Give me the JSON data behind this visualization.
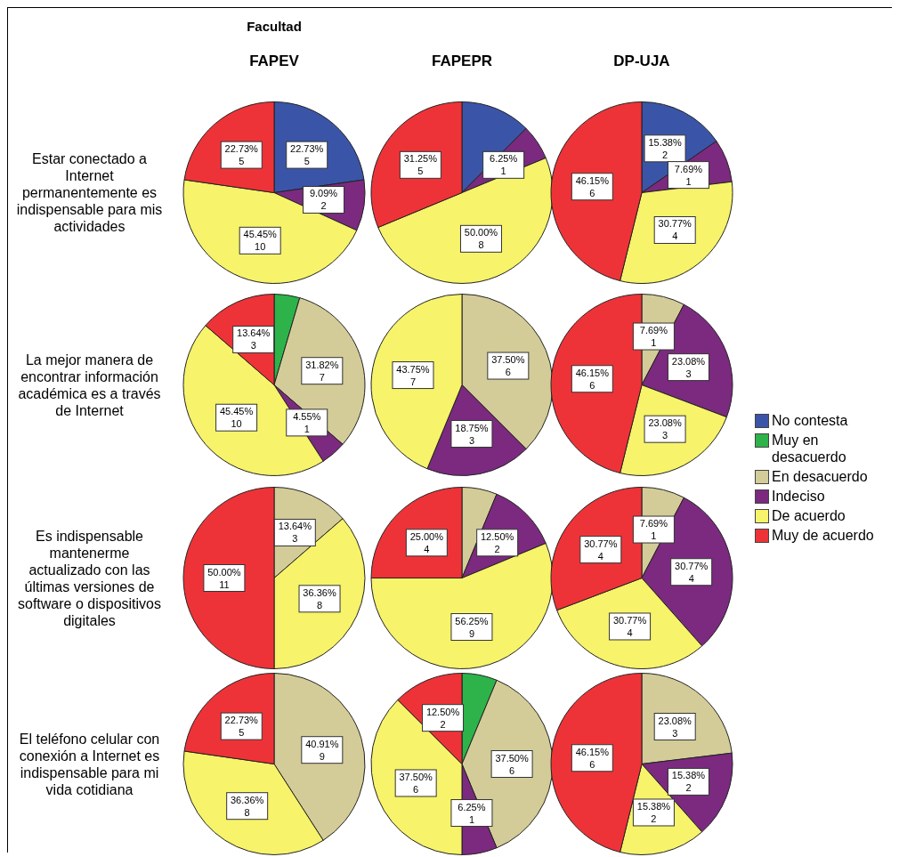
{
  "chart_data": [
    {
      "type": "pie",
      "annotations": [
        "Facultad"
      ],
      "title": "FAPEV",
      "ylabel": "Estar conectado a Internet permanentemente es indispensable para mis actividades",
      "categories": [
        null,
        null,
        null,
        null,
        null,
        null
      ],
      "values": [
        5,
        null,
        null,
        2,
        10,
        5
      ],
      "value_labels": [
        "22.73%\n5",
        null,
        null,
        "9.09%\n2",
        "45.45%\n10",
        "22.73%\n5"
      ],
      "colors": [
        "#3a55a8",
        null,
        null,
        "#7b2a7f",
        "#f7f36a",
        "#ee3338"
      ]
    },
    {
      "type": "pie",
      "title": "FAPEPR",
      "categories": [
        null,
        null,
        null,
        null,
        null,
        null
      ],
      "values": [
        2,
        null,
        null,
        1,
        8,
        5
      ],
      "value_labels": [
        null,
        null,
        null,
        "6.25%\n1",
        "50.00%\n8",
        "31.25%\n5"
      ],
      "colors": [
        "#3a55a8",
        null,
        null,
        "#7b2a7f",
        "#f7f36a",
        "#ee3338"
      ]
    },
    {
      "type": "pie",
      "title": "DP-UJA",
      "categories": [
        null,
        null,
        null,
        null,
        null,
        null
      ],
      "values": [
        2,
        null,
        null,
        1,
        4,
        6
      ],
      "value_labels": [
        "15.38%\n2",
        null,
        null,
        "7.69%\n1",
        "30.77%\n4",
        "46.15%\n6"
      ],
      "colors": [
        "#3a55a8",
        null,
        null,
        "#7b2a7f",
        "#f7f36a",
        "#ee3338"
      ]
    },
    {
      "type": "pie",
      "ylabel": "La mejor manera de encontrar información académica es a través de Internet",
      "categories": [
        null,
        null,
        null,
        null,
        null,
        null
      ],
      "values": [
        null,
        1,
        7,
        1,
        10,
        3
      ],
      "value_labels": [
        null,
        null,
        "31.82%\n7",
        "4.55%\n1",
        "45.45%\n10",
        "13.64%\n3"
      ],
      "colors": [
        null,
        "#2db34a",
        "#d3cc98",
        "#7b2a7f",
        "#f7f36a",
        "#ee3338"
      ]
    },
    {
      "type": "pie",
      "categories": [
        null,
        null,
        null,
        null,
        null,
        null
      ],
      "values": [
        null,
        null,
        6,
        3,
        7,
        null
      ],
      "value_labels": [
        null,
        null,
        "37.50%\n6",
        "18.75%\n3",
        "43.75%\n7",
        null
      ],
      "colors": [
        null,
        null,
        "#d3cc98",
        "#7b2a7f",
        "#f7f36a",
        null
      ]
    },
    {
      "type": "pie",
      "legend": "right",
      "categories": [
        "No contesta",
        "Muy en desacuerdo",
        "En desacuerdo",
        "Indeciso",
        "De acuerdo",
        "Muy de acuerdo"
      ],
      "values": [
        null,
        null,
        1,
        3,
        3,
        6
      ],
      "value_labels": [
        null,
        null,
        "7.69%\n1",
        "23.08%\n3",
        "23.08%\n3",
        "46.15%\n6"
      ],
      "colors": [
        "#3a55a8",
        "#2db34a",
        "#d3cc98",
        "#7b2a7f",
        "#f7f36a",
        "#ee3338"
      ]
    },
    {
      "type": "pie",
      "ylabel": "Es indispensable mantenerme actualizado con las últimas versiones de software o dispositivos digitales",
      "categories": [
        null,
        null,
        null,
        null,
        null,
        null
      ],
      "values": [
        null,
        null,
        3,
        null,
        8,
        11
      ],
      "value_labels": [
        null,
        null,
        "13.64%\n3",
        null,
        "36.36%\n8",
        "50.00%\n11"
      ],
      "colors": [
        null,
        null,
        "#d3cc98",
        null,
        "#f7f36a",
        "#ee3338"
      ]
    },
    {
      "type": "pie",
      "categories": [
        null,
        null,
        null,
        null,
        null,
        null
      ],
      "values": [
        null,
        null,
        1,
        2,
        9,
        4
      ],
      "value_labels": [
        null,
        null,
        null,
        "12.50%\n2",
        "56.25%\n9",
        "25.00%\n4"
      ],
      "colors": [
        null,
        null,
        "#d3cc98",
        "#7b2a7f",
        "#f7f36a",
        "#ee3338"
      ]
    },
    {
      "type": "pie",
      "categories": [
        null,
        null,
        null,
        null,
        null,
        null
      ],
      "values": [
        null,
        null,
        1,
        4,
        4,
        4
      ],
      "value_labels": [
        null,
        null,
        "7.69%\n1",
        "30.77%\n4",
        "30.77%\n4",
        "30.77%\n4"
      ],
      "colors": [
        null,
        null,
        "#d3cc98",
        "#7b2a7f",
        "#f7f36a",
        "#ee3338"
      ]
    },
    {
      "type": "pie",
      "ylabel": "El teléfono celular con conexión a Internet es indispensable para mi vida cotidiana",
      "categories": [
        null,
        null,
        null,
        null,
        null,
        null
      ],
      "values": [
        null,
        null,
        9,
        null,
        8,
        5
      ],
      "value_labels": [
        null,
        null,
        "40.91%\n9",
        null,
        "36.36%\n8",
        "22.73%\n5"
      ],
      "colors": [
        null,
        null,
        "#d3cc98",
        null,
        "#f7f36a",
        "#ee3338"
      ]
    },
    {
      "type": "pie",
      "categories": [
        null,
        null,
        null,
        null,
        null,
        null
      ],
      "values": [
        null,
        1,
        6,
        1,
        6,
        2
      ],
      "value_labels": [
        null,
        null,
        "37.50%\n6",
        "6.25%\n1",
        "37.50%\n6",
        "12.50%\n2"
      ],
      "colors": [
        null,
        "#2db34a",
        "#d3cc98",
        "#7b2a7f",
        "#f7f36a",
        "#ee3338"
      ]
    },
    {
      "type": "pie",
      "categories": [
        null,
        null,
        null,
        null,
        null,
        null
      ],
      "values": [
        null,
        null,
        3,
        2,
        2,
        6
      ],
      "value_labels": [
        null,
        null,
        "23.08%\n3",
        "15.38%\n2",
        "15.38%\n2",
        "46.15%\n6"
      ],
      "colors": [
        null,
        null,
        "#d3cc98",
        "#7b2a7f",
        "#f7f36a",
        "#ee3338"
      ]
    }
  ]
}
